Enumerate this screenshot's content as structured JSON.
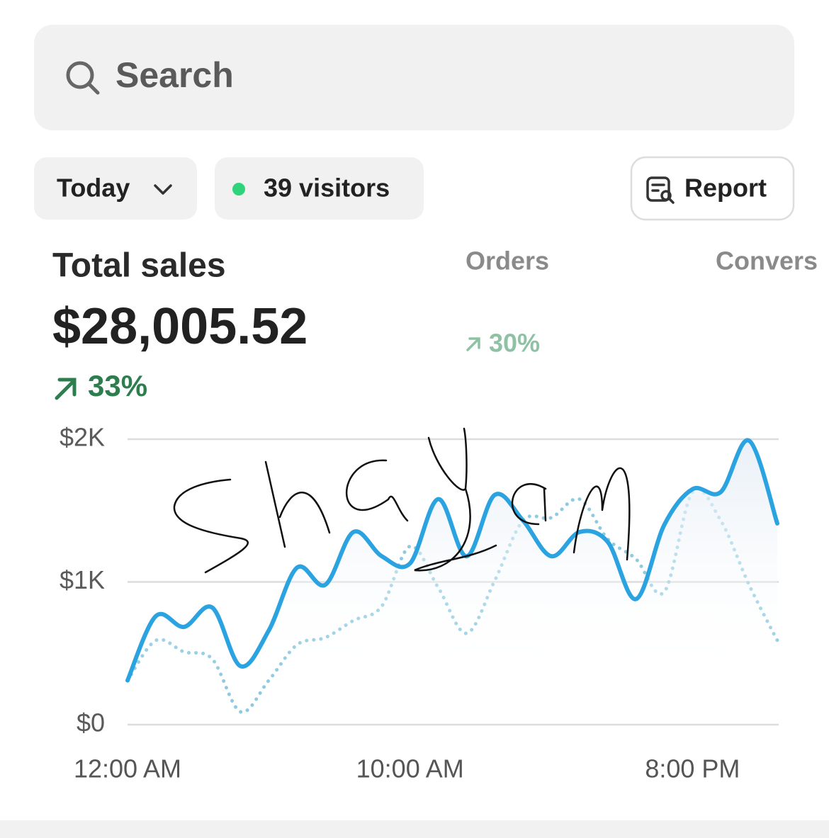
{
  "search": {
    "placeholder": "Search"
  },
  "filters": {
    "date": "Today",
    "visitors": "39 visitors",
    "report": "Report"
  },
  "metrics": [
    {
      "label": "Total sales",
      "value": "$28,005.52",
      "change": "33%"
    },
    {
      "label": "Orders",
      "change": "30%"
    },
    {
      "label": "Convers"
    }
  ],
  "chart_data": {
    "type": "line",
    "categories": [
      "12:00 AM",
      null,
      null,
      null,
      null,
      null,
      null,
      null,
      null,
      null,
      "10:00 AM",
      null,
      null,
      null,
      null,
      null,
      null,
      null,
      null,
      null,
      "8:00 PM",
      null,
      null,
      null
    ],
    "series": [
      {
        "color": "#2ba3e0",
        "style": "solid",
        "values": [
          310,
          760,
          685,
          820,
          410,
          660,
          1100,
          980,
          1350,
          1180,
          1130,
          1580,
          1180,
          1610,
          1430,
          1180,
          1350,
          1280,
          880,
          1400,
          1650,
          1630,
          1990,
          1410
        ]
      },
      {
        "color": "#8ecbe0",
        "style": "dotted",
        "values": [
          310,
          590,
          510,
          460,
          90,
          310,
          560,
          610,
          730,
          830,
          1250,
          960,
          640,
          1010,
          1430,
          1450,
          1580,
          1300,
          1160,
          930,
          1630,
          1430,
          980,
          590
        ]
      }
    ],
    "ylim": [
      0,
      2000
    ],
    "yticks": [
      {
        "value": 0,
        "label": "$0"
      },
      {
        "value": 1000,
        "label": "$1K"
      },
      {
        "value": 2000,
        "label": "$2K"
      }
    ],
    "grid": true
  }
}
